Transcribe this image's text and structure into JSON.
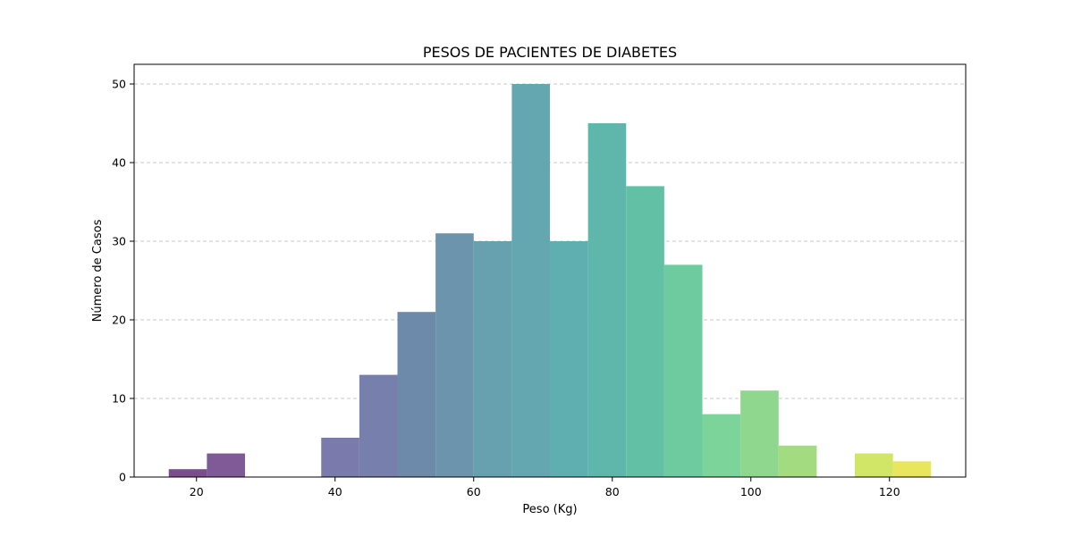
{
  "chart_data": {
    "type": "bar",
    "title": "PESOS DE PACIENTES DE DIABETES",
    "xlabel": "Peso (Kg)",
    "ylabel": "Número de Casos",
    "xlim": [
      11,
      131
    ],
    "ylim": [
      0,
      52.5
    ],
    "x_ticks": [
      20,
      40,
      60,
      80,
      100,
      120
    ],
    "y_ticks": [
      0,
      10,
      20,
      30,
      40,
      50
    ],
    "bin_width": 5.5,
    "grid": "y-dashed",
    "bins": [
      {
        "start": 16.0,
        "end": 21.5,
        "count": 1,
        "color": "#7b4d8e"
      },
      {
        "start": 21.5,
        "end": 27.0,
        "count": 3,
        "color": "#7e5a96"
      },
      {
        "start": 27.0,
        "end": 32.5,
        "count": 0,
        "color": "#7e68a2"
      },
      {
        "start": 32.5,
        "end": 38.0,
        "count": 0,
        "color": "#7c74a8"
      },
      {
        "start": 38.0,
        "end": 43.5,
        "count": 5,
        "color": "#7b7aac"
      },
      {
        "start": 43.5,
        "end": 49.0,
        "count": 13,
        "color": "#7780ac"
      },
      {
        "start": 49.0,
        "end": 54.5,
        "count": 21,
        "color": "#6d8aab"
      },
      {
        "start": 54.5,
        "end": 60.0,
        "count": 31,
        "color": "#6c94ad"
      },
      {
        "start": 60.0,
        "end": 65.5,
        "count": 30,
        "color": "#67a0ae"
      },
      {
        "start": 65.5,
        "end": 71.0,
        "count": 50,
        "color": "#65a7b0"
      },
      {
        "start": 71.0,
        "end": 76.5,
        "count": 30,
        "color": "#60afb0"
      },
      {
        "start": 76.5,
        "end": 82.0,
        "count": 45,
        "color": "#5fb7ab"
      },
      {
        "start": 82.0,
        "end": 87.5,
        "count": 37,
        "color": "#62c1a4"
      },
      {
        "start": 87.5,
        "end": 93.0,
        "count": 27,
        "color": "#6dcb9f"
      },
      {
        "start": 93.0,
        "end": 98.5,
        "count": 8,
        "color": "#7dd49a"
      },
      {
        "start": 98.5,
        "end": 104.0,
        "count": 11,
        "color": "#8fd78f"
      },
      {
        "start": 104.0,
        "end": 109.5,
        "count": 4,
        "color": "#a3dc80"
      },
      {
        "start": 109.5,
        "end": 115.0,
        "count": 0,
        "color": "#b8e070"
      },
      {
        "start": 115.0,
        "end": 120.5,
        "count": 3,
        "color": "#d1e566"
      },
      {
        "start": 120.5,
        "end": 126.0,
        "count": 2,
        "color": "#e7e65c"
      }
    ]
  }
}
